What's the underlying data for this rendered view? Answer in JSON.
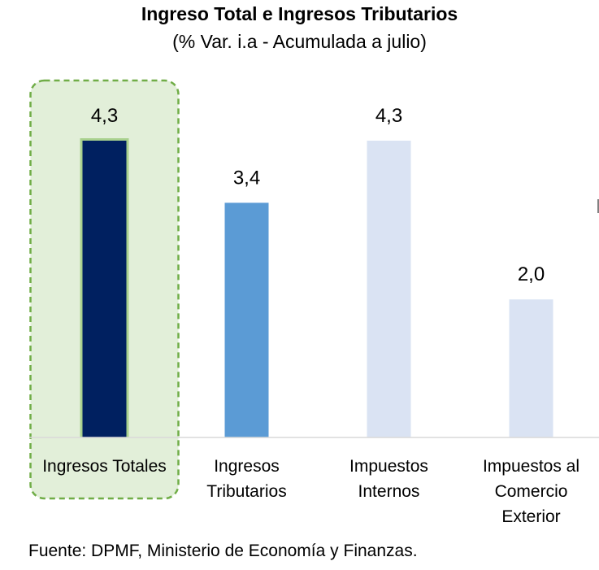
{
  "chart_data": {
    "type": "bar",
    "title": "Ingreso Total e Ingresos Tributarios",
    "subtitle": "(% Var. i.a - Acumulada a julio)",
    "categories": [
      [
        "Ingresos Totales"
      ],
      [
        "Ingresos",
        "Tributarios"
      ],
      [
        "Impuestos",
        "Internos"
      ],
      [
        "Impuestos al",
        "Comercio",
        "Exterior"
      ]
    ],
    "values": [
      4.3,
      3.4,
      4.3,
      2.0
    ],
    "value_labels": [
      "4,3",
      "3,4",
      "4,3",
      "2,0"
    ],
    "colors": [
      "#002060",
      "#5b9bd5",
      "#dae3f3",
      "#dae3f3"
    ],
    "highlight": {
      "category_index": 0,
      "border_color": "#70ad47",
      "fill_color": "#e2efd9"
    },
    "ylim": [
      0,
      4.3
    ],
    "grid": false,
    "legend": "none"
  },
  "source": "Fuente: DPMF, Ministerio de Economía y Finanzas."
}
